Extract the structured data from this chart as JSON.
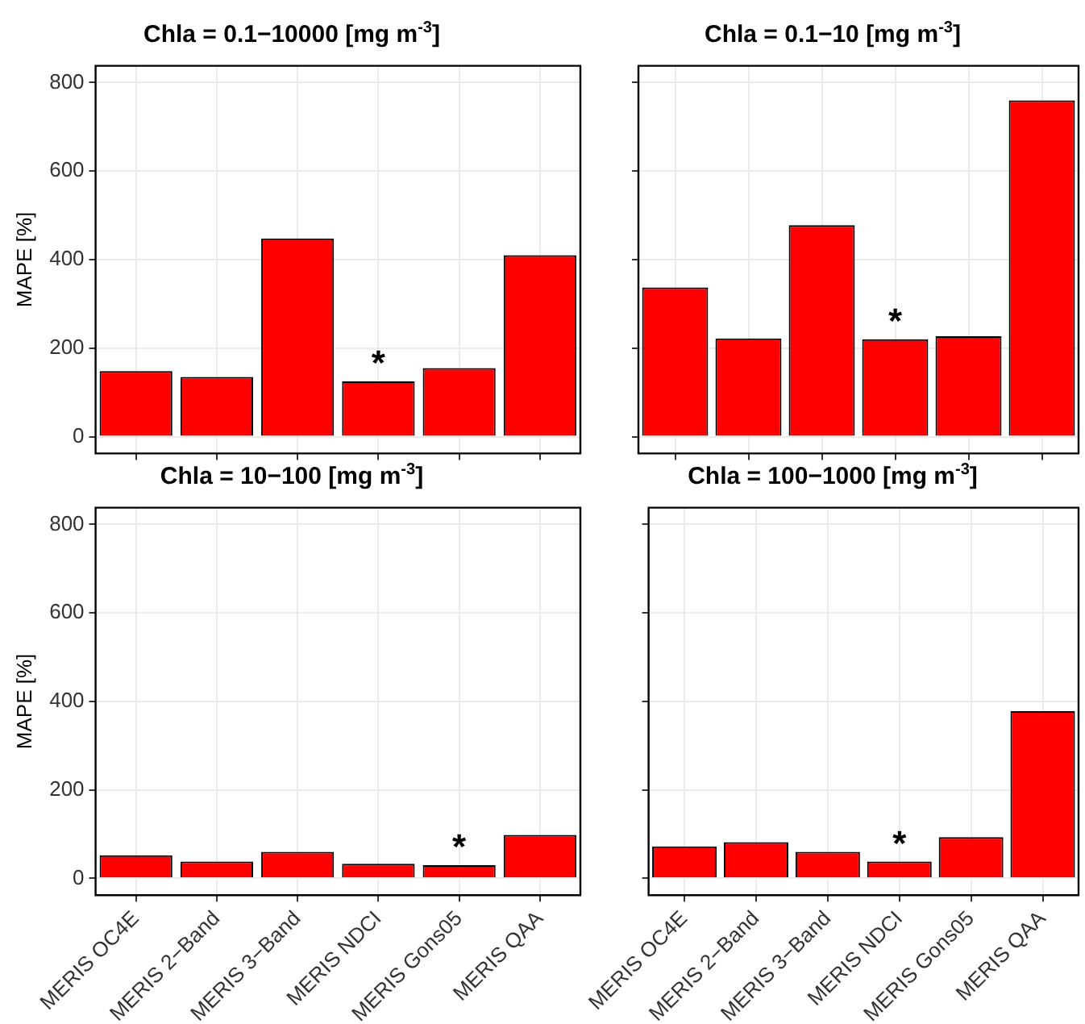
{
  "chart_data": [
    {
      "type": "bar",
      "title": "Chla = 0.1−10000 [mg m$^{-3}$]",
      "ylabel": "MAPE [%]",
      "categories": [
        "MERIS OC4E",
        "MERIS 2−Band",
        "MERIS 3−Band",
        "MERIS NDCI",
        "MERIS Gons05",
        "MERIS QAA"
      ],
      "values": [
        148,
        135,
        448,
        125,
        155,
        410
      ],
      "color": "#ff0000",
      "ylim": [
        -38,
        838
      ],
      "yticks": [
        0,
        200,
        400,
        600,
        800
      ],
      "grid": true,
      "legend": false,
      "tick_labels": "y",
      "annotations": [
        {
          "text": "*",
          "x": "MERIS NDCI",
          "y": 125
        }
      ]
    },
    {
      "type": "bar",
      "title": "Chla = 0.1−10 [mg m$^{-3}$]",
      "categories": [
        "MERIS OC4E",
        "MERIS 2−Band",
        "MERIS 3−Band",
        "MERIS NDCI",
        "MERIS Gons05",
        "MERIS QAA"
      ],
      "values": [
        337,
        222,
        478,
        220,
        227,
        760
      ],
      "color": "#ff0000",
      "ylim": [
        -38,
        838
      ],
      "yticks": [
        0,
        200,
        400,
        600,
        800
      ],
      "grid": true,
      "legend": false,
      "tick_labels": false,
      "annotations": [
        {
          "text": "*",
          "x": "MERIS NDCI",
          "y": 220
        }
      ]
    },
    {
      "type": "bar",
      "title": "Chla = 10−100 [mg m$^{-3}$]",
      "ylabel": "MAPE [%]",
      "categories": [
        "MERIS OC4E",
        "MERIS 2−Band",
        "MERIS 3−Band",
        "MERIS NDCI",
        "MERIS Gons05",
        "MERIS QAA"
      ],
      "values": [
        52,
        38,
        60,
        33,
        30,
        98
      ],
      "color": "#ff0000",
      "ylim": [
        -38,
        838
      ],
      "yticks": [
        0,
        200,
        400,
        600,
        800
      ],
      "grid": true,
      "legend": false,
      "annotations": [
        {
          "text": "*",
          "x": "MERIS Gons05",
          "y": 30
        }
      ]
    },
    {
      "type": "bar",
      "title": "Chla = 100−1000 [mg m$^{-3}$]",
      "categories": [
        "MERIS OC4E",
        "MERIS 2−Band",
        "MERIS 3−Band",
        "MERIS NDCI",
        "MERIS Gons05",
        "MERIS QAA"
      ],
      "values": [
        72,
        82,
        60,
        38,
        93,
        378
      ],
      "color": "#ff0000",
      "ylim": [
        -38,
        838
      ],
      "yticks": [
        0,
        200,
        400,
        600,
        800
      ],
      "grid": true,
      "legend": false,
      "tick_labels": "x",
      "annotations": [
        {
          "text": "*",
          "x": "MERIS NDCI",
          "y": 38
        }
      ]
    }
  ]
}
